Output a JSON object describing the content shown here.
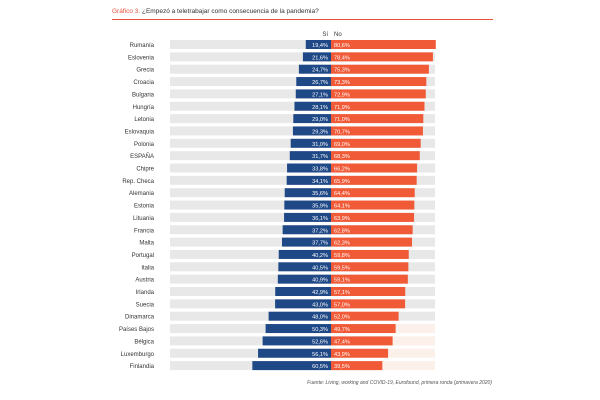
{
  "header": {
    "prefix": "Gráfico 3.",
    "question": "¿Empezó a teletrabajar como consecuencia de la pandemia?"
  },
  "source": "Fuente: Living, working and COVID-19, Eurofound, primera ronda (primavera 2020)",
  "colors": {
    "si": "#1f4886",
    "no": "#f05a37",
    "track": "#e8e8e8",
    "track_highlight": "#fbf0ea",
    "label": "#333333",
    "accent": "#e8523a"
  },
  "chart_data": {
    "type": "bar",
    "orientation": "horizontal-diverging",
    "title": "¿Empezó a teletrabajar como consecuencia de la pandemia?",
    "value_suffix": "%",
    "xlim": [
      0,
      100
    ],
    "categories": [
      "Rumanía",
      "Eslovenia",
      "Grecia",
      "Croacia",
      "Bulgaria",
      "Hungría",
      "Letonia",
      "Eslovaquia",
      "Polonia",
      "ESPAÑA",
      "Chipre",
      "Rep. Checa",
      "Alemania",
      "Estonia",
      "Lituania",
      "Francia",
      "Malta",
      "Portugal",
      "Italia",
      "Austria",
      "Irlanda",
      "Suecia",
      "Dinamarca",
      "Países Bajos",
      "Bélgica",
      "Luxemburgo",
      "Finlandia"
    ],
    "series": [
      {
        "name": "Sí",
        "values": [
          19.4,
          21.6,
          24.7,
          26.7,
          27.1,
          28.1,
          29.0,
          29.3,
          31.0,
          31.7,
          33.8,
          34.1,
          35.6,
          35.9,
          36.1,
          37.2,
          37.7,
          40.2,
          40.5,
          40.9,
          42.9,
          43.0,
          48.0,
          50.3,
          52.6,
          56.1,
          60.5
        ]
      },
      {
        "name": "No",
        "values": [
          80.6,
          78.4,
          75.3,
          73.3,
          72.9,
          71.9,
          71.0,
          70.7,
          69.0,
          68.3,
          66.2,
          65.9,
          64.4,
          64.1,
          63.9,
          62.8,
          62.3,
          59.8,
          59.5,
          59.1,
          57.1,
          57.0,
          52.0,
          49.7,
          47.4,
          43.9,
          39.5
        ]
      }
    ],
    "value_labels": {
      "Sí": [
        "19,4%",
        "21,6%",
        "24,7%",
        "26,7%",
        "27,1%",
        "28,1%",
        "29,0%",
        "29,3%",
        "31,0%",
        "31,7%",
        "33,8%",
        "34,1%",
        "35,6%",
        "35,9%",
        "36,1%",
        "37,2%",
        "37,7%",
        "40,2%",
        "40,5%",
        "40,9%",
        "42,9%",
        "43,0%",
        "48,0%",
        "50,3%",
        "52,6%",
        "56,1%",
        "60,5%"
      ],
      "No": [
        "80,6%",
        "78,4%",
        "75,3%",
        "73,3%",
        "72,9%",
        "71,9%",
        "71,0%",
        "70,7%",
        "69,0%",
        "68,3%",
        "66,2%",
        "65,9%",
        "64,4%",
        "64,1%",
        "63,9%",
        "62,8%",
        "62,3%",
        "59,8%",
        "59,5%",
        "59,1%",
        "57,1%",
        "57,0%",
        "52,0%",
        "49,7%",
        "47,4%",
        "43,9%",
        "39,5%"
      ]
    }
  }
}
